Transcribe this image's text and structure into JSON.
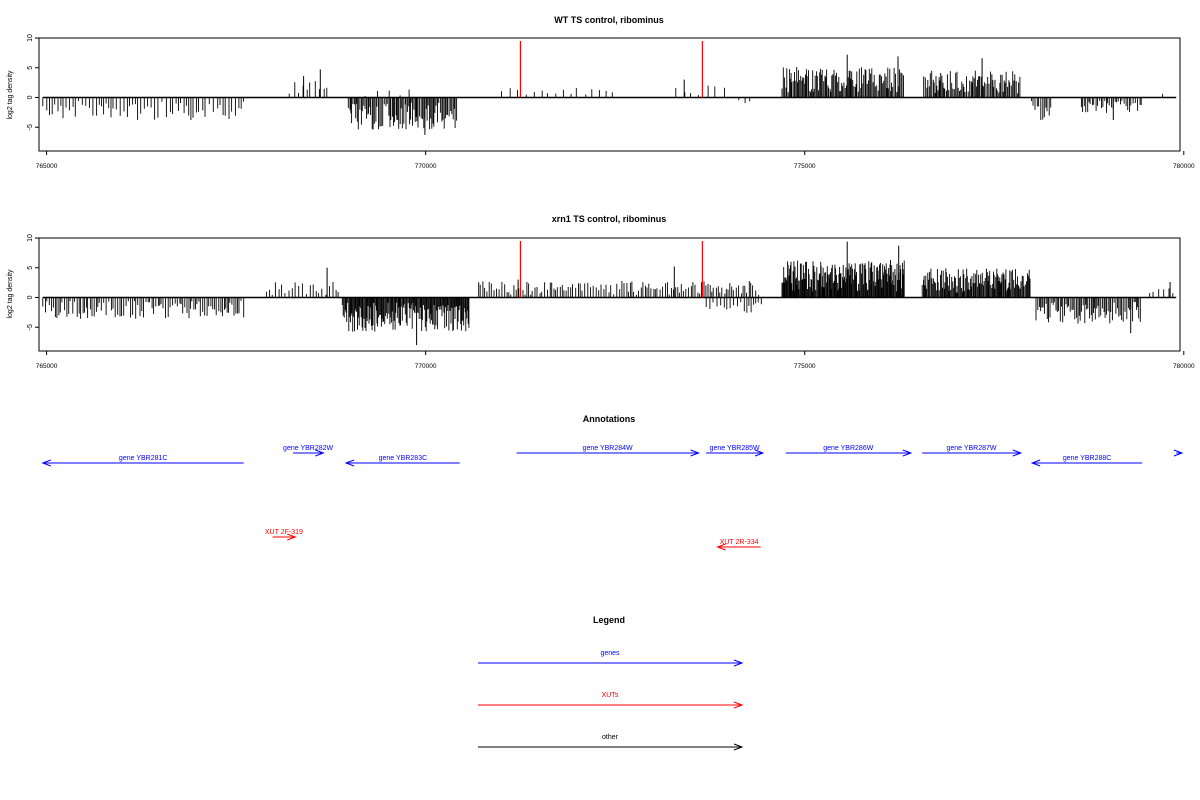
{
  "chart_data": [
    {
      "type": "bar",
      "title": "WT TS control, ribominus",
      "xlabel": "",
      "ylabel": "log2 tag density",
      "xlim": [
        764900,
        779950
      ],
      "ylim": [
        -9,
        10
      ],
      "yticks": [
        -5,
        0,
        5,
        10
      ],
      "xticks": [
        765000,
        770000,
        775000,
        780000
      ],
      "track_range": [
        764950,
        779900
      ],
      "markers": {
        "color": "#ff0000",
        "x": [
          771250,
          773650
        ],
        "height": 9.5
      },
      "segments": [
        {
          "x0": 764950,
          "x1": 767620,
          "sign": -1,
          "maxAbs": 3.8,
          "step": 42
        },
        {
          "x0": 768200,
          "x1": 768720,
          "sign": 1,
          "maxAbs": 2.8,
          "step": 55,
          "peaks": [
            [
              768610,
              4.7
            ],
            [
              768390,
              3.6
            ]
          ]
        },
        {
          "x0": 768980,
          "x1": 770420,
          "sign": -1,
          "maxAbs": 5.4,
          "step": 16,
          "peaks": [
            [
              769990,
              6.3
            ]
          ]
        },
        {
          "x0": 769200,
          "x1": 769850,
          "sign": 1,
          "maxAbs": 1.5,
          "step": 140
        },
        {
          "x0": 771000,
          "x1": 772520,
          "sign": 1,
          "maxAbs": 1.6,
          "step": 95
        },
        {
          "x0": 773300,
          "x1": 773980,
          "sign": 1,
          "maxAbs": 2.1,
          "step": 110,
          "peaks": [
            [
              773410,
              3.0
            ]
          ]
        },
        {
          "x0": 774130,
          "x1": 774320,
          "sign": -1,
          "maxAbs": 1.2,
          "step": 80
        },
        {
          "x0": 774700,
          "x1": 776310,
          "sign": 1,
          "maxAbs": 5.2,
          "step": 14,
          "peaks": [
            [
              775560,
              7.2
            ],
            [
              776230,
              6.9
            ]
          ]
        },
        {
          "x0": 776570,
          "x1": 777850,
          "sign": 1,
          "maxAbs": 4.6,
          "step": 16,
          "peaks": [
            [
              777340,
              6.6
            ]
          ]
        },
        {
          "x0": 777990,
          "x1": 778250,
          "sign": -1,
          "maxAbs": 3.8,
          "step": 22
        },
        {
          "x0": 778650,
          "x1": 779450,
          "sign": -1,
          "maxAbs": 2.6,
          "step": 24,
          "peaks": [
            [
              779070,
              3.8
            ]
          ]
        },
        {
          "x0": 779720,
          "x1": 779750,
          "sign": 1,
          "maxAbs": 1.0,
          "step": 30
        }
      ]
    },
    {
      "type": "bar",
      "title": "xrn1 TS control, ribominus",
      "xlabel": "",
      "ylabel": "log2 tag density",
      "xlim": [
        764900,
        779950
      ],
      "ylim": [
        -9,
        10
      ],
      "yticks": [
        -5,
        0,
        5,
        10
      ],
      "xticks": [
        765000,
        770000,
        775000,
        780000
      ],
      "track_range": [
        764950,
        779900
      ],
      "markers": {
        "color": "#ff0000",
        "x": [
          771250,
          773650
        ],
        "height": 9.5
      },
      "segments": [
        {
          "x0": 764950,
          "x1": 767620,
          "sign": -1,
          "maxAbs": 3.6,
          "step": 26
        },
        {
          "x0": 767900,
          "x1": 768850,
          "sign": 1,
          "maxAbs": 2.6,
          "step": 40,
          "peaks": [
            [
              768700,
              5.0
            ]
          ]
        },
        {
          "x0": 768900,
          "x1": 770580,
          "sign": -1,
          "maxAbs": 5.8,
          "step": 11,
          "peaks": [
            [
              769880,
              8.0
            ]
          ]
        },
        {
          "x0": 770700,
          "x1": 774420,
          "sign": 1,
          "maxAbs": 2.8,
          "step": 30,
          "peaks": [
            [
              773280,
              5.2
            ],
            [
              771220,
              3.0
            ]
          ]
        },
        {
          "x0": 773700,
          "x1": 774450,
          "sign": -1,
          "maxAbs": 2.6,
          "step": 42
        },
        {
          "x0": 774700,
          "x1": 776320,
          "sign": 1,
          "maxAbs": 6.4,
          "step": 10,
          "peaks": [
            [
              775560,
              9.4
            ],
            [
              776240,
              8.7
            ]
          ]
        },
        {
          "x0": 776550,
          "x1": 777980,
          "sign": 1,
          "maxAbs": 5.0,
          "step": 12
        },
        {
          "x0": 778050,
          "x1": 779430,
          "sign": -1,
          "maxAbs": 4.4,
          "step": 18,
          "peaks": [
            [
              779300,
              6.0
            ]
          ]
        },
        {
          "x0": 779550,
          "x1": 779860,
          "sign": 1,
          "maxAbs": 1.6,
          "step": 55,
          "peaks": [
            [
              779820,
              2.6
            ]
          ]
        }
      ]
    }
  ],
  "annotations": {
    "title": "Annotations",
    "genes_color": "#0000ff",
    "xuts_color": "#ff0000",
    "genes": [
      {
        "label": "gene YBR281C",
        "start": 764950,
        "end": 767600,
        "strand": "-",
        "row": 2
      },
      {
        "label": "gene YBR282W",
        "start": 768250,
        "end": 768650,
        "strand": "+",
        "row": 1
      },
      {
        "label": "gene YBR283C",
        "start": 768950,
        "end": 770450,
        "strand": "-",
        "row": 2
      },
      {
        "label": "gene YBR284W",
        "start": 771200,
        "end": 773600,
        "strand": "+",
        "row": 1
      },
      {
        "label": "gene YBR285W",
        "start": 773700,
        "end": 774450,
        "strand": "+",
        "row": 1
      },
      {
        "label": "gene YBR286W",
        "start": 774750,
        "end": 776400,
        "strand": "+",
        "row": 1
      },
      {
        "label": "gene YBR287W",
        "start": 776550,
        "end": 777850,
        "strand": "+",
        "row": 1
      },
      {
        "label": "gene YBR288C",
        "start": 778000,
        "end": 779450,
        "strand": "-",
        "row": 2
      },
      {
        "label": "",
        "start": 779900,
        "end": 780900,
        "strand": "+",
        "row": 1
      }
    ],
    "xuts": [
      {
        "label": "XUT 2F-319",
        "start": 767980,
        "end": 768280,
        "strand": "+",
        "row": 1
      },
      {
        "label": "XUT 2R-334",
        "start": 773850,
        "end": 774420,
        "strand": "-",
        "row": 2
      }
    ]
  },
  "legend": {
    "title": "Legend",
    "items": [
      {
        "label": "genes",
        "color": "#0000ff"
      },
      {
        "label": "XUTs",
        "color": "#ff0000"
      },
      {
        "label": "other",
        "color": "#000000"
      }
    ]
  }
}
